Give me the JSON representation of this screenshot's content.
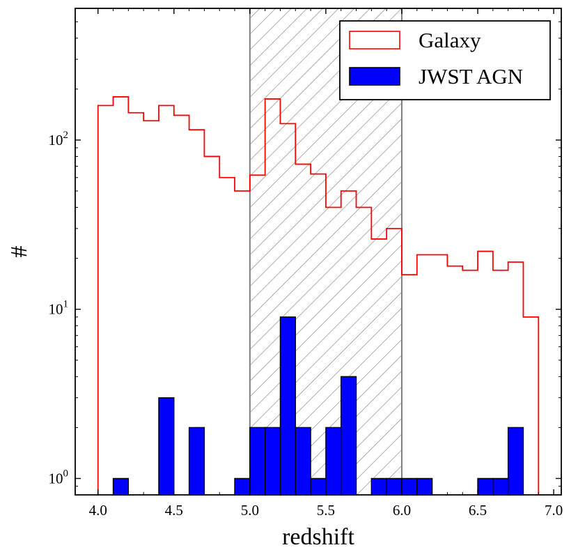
{
  "chart_data": {
    "type": "histogram",
    "xlabel": "redshift",
    "ylabel": "#",
    "yscale": "log",
    "xlim": [
      3.85,
      7.05
    ],
    "ylim": [
      0.8,
      600
    ],
    "x_ticks": [
      4.0,
      4.5,
      5.0,
      5.5,
      6.0,
      6.5,
      7.0
    ],
    "x_tick_labels": [
      "4.0",
      "4.5",
      "5.0",
      "5.5",
      "6.0",
      "6.5",
      "7.0"
    ],
    "y_ticks": [
      {
        "value": 1,
        "base": "10",
        "exp": "0"
      },
      {
        "value": 10,
        "base": "10",
        "exp": "1"
      },
      {
        "value": 100,
        "base": "10",
        "exp": "2"
      }
    ],
    "shaded_region": {
      "x_start": 5.0,
      "x_end": 6.0,
      "style": "hatched",
      "color": "#808080"
    },
    "bin_width": 0.1,
    "series": [
      {
        "name": "Galaxy",
        "style": "step",
        "color": "#ff0000",
        "bin_start": 4.0,
        "values": [
          160,
          180,
          145,
          130,
          160,
          140,
          115,
          80,
          60,
          50,
          62,
          175,
          125,
          72,
          63,
          40,
          50,
          40,
          26,
          30,
          16,
          21,
          21,
          18,
          17,
          22,
          17,
          19,
          9
        ]
      },
      {
        "name": "JWST AGN",
        "style": "bar",
        "color": "#0000ff",
        "edgecolor": "#000000",
        "bin_start": 4.0,
        "values": [
          0,
          1,
          0,
          0,
          3,
          0,
          2,
          0,
          0,
          1,
          2,
          2,
          9,
          2,
          1,
          2,
          4,
          0,
          1,
          1,
          1,
          1,
          0,
          0,
          0,
          1,
          1,
          2,
          0
        ]
      }
    ],
    "legend": {
      "position": "top-right",
      "entries": [
        {
          "label": "Galaxy",
          "fill": "#ffffff",
          "edge": "#ff0000"
        },
        {
          "label": "JWST AGN",
          "fill": "#0000ff",
          "edge": "#000000"
        }
      ]
    }
  }
}
